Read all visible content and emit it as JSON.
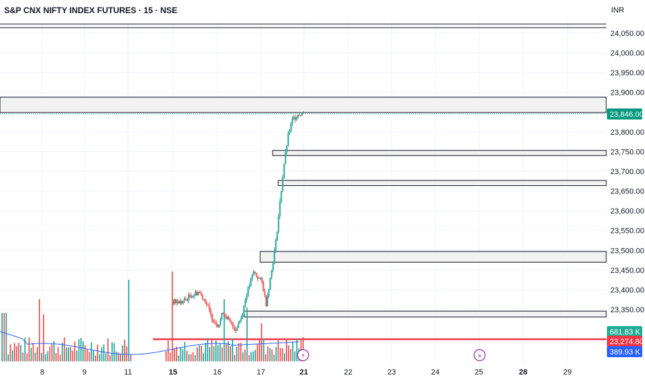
{
  "header": {
    "symbol_title": "S&P CNX NIFTY INDEX FUTURES · 15 · NSE",
    "currency": "INR"
  },
  "colors": {
    "up": "#26a69a",
    "down": "#ef5350",
    "grid": "#f0f3fa",
    "zone_fill": "#f2f2f2",
    "zone_border": "#131722",
    "vwap_line": "#2962ff",
    "support_line": "#f23645",
    "last_price_tag": "#089981",
    "volume_up_tag": "#22ab94",
    "support_tag": "#f23645",
    "vol_ma_tag": "#2962ff",
    "event_icon": "#9c27b0"
  },
  "chart_data": {
    "type": "candlestick",
    "price_axis": {
      "ticks": [
        "24,050.00",
        "24,000.00",
        "23,950.00",
        "23,900.00",
        "23,800.00",
        "23,750.00",
        "23,700.00",
        "23,650.00",
        "23,600.00",
        "23,550.00",
        "23,500.00",
        "23,450.00",
        "23,400.00",
        "23,350.00"
      ],
      "tick_values": [
        24050,
        24000,
        23950,
        23900,
        23800,
        23750,
        23700,
        23650,
        23600,
        23550,
        23500,
        23450,
        23400,
        23350
      ],
      "range": [
        23225,
        24085
      ]
    },
    "time_axis": {
      "ticks": [
        {
          "label": "8",
          "bold": false
        },
        {
          "label": "9",
          "bold": false
        },
        {
          "label": "11",
          "bold": false
        },
        {
          "label": "15",
          "bold": true
        },
        {
          "label": "16",
          "bold": false
        },
        {
          "label": "17",
          "bold": false
        },
        {
          "label": "21",
          "bold": true
        },
        {
          "label": "22",
          "bold": false
        },
        {
          "label": "23",
          "bold": false
        },
        {
          "label": "24",
          "bold": false
        },
        {
          "label": "25",
          "bold": false
        },
        {
          "label": "28",
          "bold": true
        },
        {
          "label": "29",
          "bold": false
        }
      ]
    },
    "price_tags": [
      {
        "label": "23,846.00",
        "value": 23846,
        "kind": "last_price"
      },
      {
        "label": "681.83 K",
        "kind": "volume"
      },
      {
        "label": "23,274.80",
        "value": 23274.8,
        "kind": "support"
      },
      {
        "label": "389.93 K",
        "kind": "volume_ma"
      }
    ],
    "horizontal_lines": [
      {
        "value": 24073,
        "style": "solid"
      },
      {
        "value": 24064,
        "style": "solid"
      },
      {
        "value": 23274.8,
        "style": "support"
      }
    ],
    "zones": [
      {
        "from_session": 0,
        "top": 23888,
        "bottom": 23849
      },
      {
        "from_session": 7.3,
        "top": 23753,
        "bottom": 23740
      },
      {
        "from_session": 7.42,
        "top": 23677,
        "bottom": 23664
      },
      {
        "from_session": 6.0,
        "top": 23497,
        "bottom": 23470
      },
      {
        "from_session": 5.6,
        "top": 23346,
        "bottom": 23331
      }
    ],
    "sessions": [
      {
        "key": "8",
        "open": 0,
        "close": 0,
        "high": 0,
        "low": 0
      },
      {
        "key": "9"
      },
      {
        "key": "11"
      },
      {
        "key": "15",
        "price_range": [
          23310,
          23410
        ]
      },
      {
        "key": "16",
        "price_range": [
          23290,
          23400
        ]
      },
      {
        "key": "17",
        "price_range": [
          23330,
          23480
        ]
      },
      {
        "key": "20",
        "price_range": [
          23440,
          23860
        ]
      }
    ],
    "volume_pane": {
      "last_volume": "681.83 K",
      "volume_ma": "389.93 K"
    }
  }
}
